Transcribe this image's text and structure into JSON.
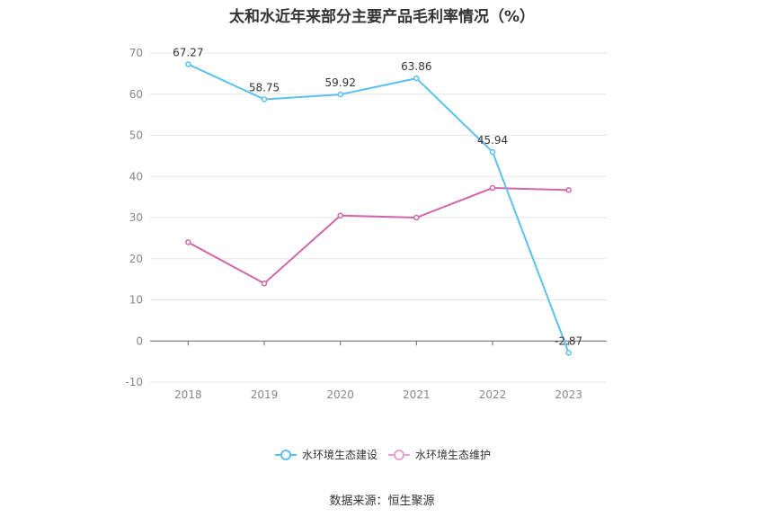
{
  "title": "太和水近年来部分主要产品毛利率情况（%）",
  "source": "数据来源：恒生聚源",
  "chart_data": {
    "type": "line",
    "title": "太和水近年来部分主要产品毛利率情况（%）",
    "categories": [
      "2018",
      "2019",
      "2020",
      "2021",
      "2022",
      "2023"
    ],
    "ylim": [
      -10,
      70
    ],
    "yticks": [
      -10,
      0,
      10,
      20,
      30,
      40,
      50,
      60,
      70
    ],
    "grid": true,
    "legend_position": "bottom",
    "series": [
      {
        "name": "水环境生态建设",
        "color": "#5bc0f0",
        "values": [
          67.27,
          58.75,
          59.92,
          63.86,
          45.94,
          -2.87
        ],
        "labels": [
          "67.27",
          "58.75",
          "59.92",
          "63.86",
          "45.94",
          "-2.87"
        ]
      },
      {
        "name": "水环境生态维护",
        "color": "#d065a8",
        "legend_color": "#e8a0cc",
        "values": [
          24.0,
          14.0,
          30.5,
          30.0,
          37.2,
          36.7
        ],
        "labels": []
      }
    ]
  }
}
